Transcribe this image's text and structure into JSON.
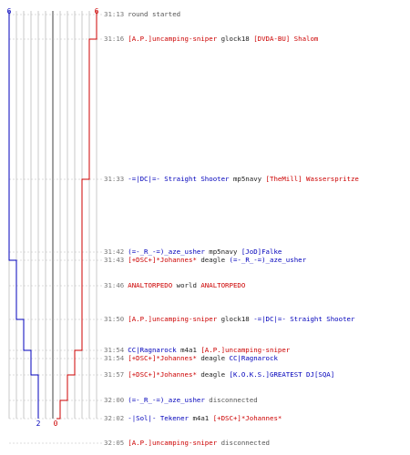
{
  "colors": {
    "red": "#cc0000",
    "blue": "#0000bb",
    "grid": "#bbbbbb",
    "center": "#777777",
    "dash": "#bbbbbb"
  },
  "counts": {
    "blue_start": "6",
    "red_start": "6",
    "blue_end": "2",
    "red_end": "0"
  },
  "score_timeline": [
    {
      "time": "31:13",
      "blue": 6,
      "red": 6
    },
    {
      "time": "31:16",
      "blue": 6,
      "red": 5
    },
    {
      "time": "31:33",
      "blue": 6,
      "red": 4
    },
    {
      "time": "31:43",
      "blue": 5,
      "red": 4
    },
    {
      "time": "31:50",
      "blue": 4,
      "red": 4
    },
    {
      "time": "31:54",
      "blue": 3,
      "red": 3
    },
    {
      "time": "31:57",
      "blue": 2,
      "red": 3
    },
    {
      "time": "32:00",
      "blue": 2,
      "red": 2
    },
    {
      "time": "32:02",
      "blue": 2,
      "red": 1
    },
    {
      "time": "32:05",
      "blue": 2,
      "red": 0
    }
  ],
  "events": [
    {
      "time": "31:13",
      "parts": [
        {
          "t": "round started",
          "c": "txt"
        }
      ]
    },
    {
      "time": "31:16",
      "parts": [
        {
          "t": "[A.P.]uncamping-sniper",
          "c": "p-red"
        },
        {
          "t": " glock18 ",
          "c": "p-black"
        },
        {
          "t": "[DVDA-BU] Shalom",
          "c": "p-red"
        }
      ]
    },
    {
      "time": "31:33",
      "parts": [
        {
          "t": "-=|DC|=- Straight Shooter",
          "c": "p-blue"
        },
        {
          "t": " mp5navy ",
          "c": "p-black"
        },
        {
          "t": "[TheMill] Wasserspritze",
          "c": "p-red"
        }
      ]
    },
    {
      "time": "31:42",
      "parts": [
        {
          "t": "(=-_R_-=)_aze_usher",
          "c": "p-blue"
        },
        {
          "t": " mp5navy ",
          "c": "p-black"
        },
        {
          "t": "[JoD]Falke",
          "c": "p-blue"
        }
      ]
    },
    {
      "time": "31:43",
      "parts": [
        {
          "t": "[+DSC+]*Johannes*",
          "c": "p-red"
        },
        {
          "t": " deagle ",
          "c": "p-black"
        },
        {
          "t": "(=-_R_-=)_aze_usher",
          "c": "p-blue"
        }
      ]
    },
    {
      "time": "31:46",
      "parts": [
        {
          "t": "ANALTORPEDO",
          "c": "p-red"
        },
        {
          "t": " world ",
          "c": "p-black"
        },
        {
          "t": "ANALTORPEDO",
          "c": "p-red"
        }
      ]
    },
    {
      "time": "31:50",
      "parts": [
        {
          "t": "[A.P.]uncamping-sniper",
          "c": "p-red"
        },
        {
          "t": " glock18 ",
          "c": "p-black"
        },
        {
          "t": "-=|DC|=- Straight Shooter",
          "c": "p-blue"
        }
      ]
    },
    {
      "time": "31:54",
      "parts": [
        {
          "t": "CC|Ragnarock",
          "c": "p-blue"
        },
        {
          "t": " m4a1 ",
          "c": "p-black"
        },
        {
          "t": "[A.P.]uncamping-sniper",
          "c": "p-red"
        }
      ]
    },
    {
      "time": "31:54",
      "parts": [
        {
          "t": "[+DSC+]*Johannes*",
          "c": "p-red"
        },
        {
          "t": " deagle ",
          "c": "p-black"
        },
        {
          "t": "CC|Ragnarock",
          "c": "p-blue"
        }
      ]
    },
    {
      "time": "31:57",
      "parts": [
        {
          "t": "[+DSC+]*Johannes*",
          "c": "p-red"
        },
        {
          "t": " deagle ",
          "c": "p-black"
        },
        {
          "t": "[K.O.K.S.]GREATEST DJ[SQA]",
          "c": "p-blue"
        }
      ]
    },
    {
      "time": "32:00",
      "parts": [
        {
          "t": "(=-_R_-=)_aze_usher",
          "c": "p-blue"
        },
        {
          "t": " disconnected",
          "c": "txt"
        }
      ]
    },
    {
      "time": "32:02",
      "parts": [
        {
          "t": "-|Sol|- Tekener",
          "c": "p-blue"
        },
        {
          "t": " m4a1 ",
          "c": "p-black"
        },
        {
          "t": "[+DSC+]*Johannes*",
          "c": "p-red"
        }
      ]
    },
    {
      "time": "32:05",
      "parts": [
        {
          "t": "[A.P.]uncamping-sniper",
          "c": "p-red"
        },
        {
          "t": " disconnected",
          "c": "txt"
        }
      ]
    }
  ]
}
